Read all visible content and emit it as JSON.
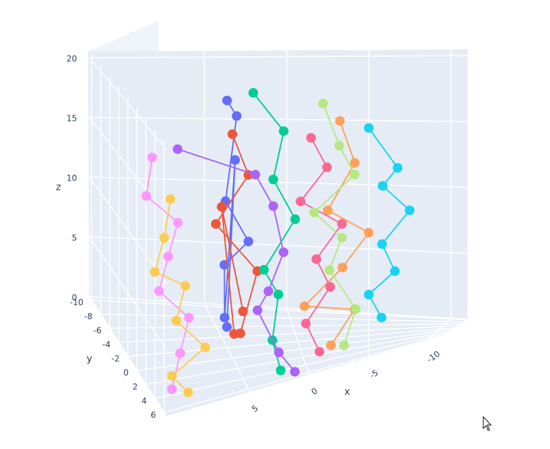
{
  "chart_data": {
    "type": "scatter3d",
    "x_label": "x",
    "y_label": "y",
    "z_label": "z",
    "xlim": [
      -11,
      12
    ],
    "ylim": [
      -10.5,
      6.5
    ],
    "zlim": [
      0,
      20.5
    ],
    "xticks": [
      -10,
      -5,
      0,
      5
    ],
    "yticks": [
      -10,
      -8,
      -6,
      -4,
      -2,
      0,
      2,
      4,
      6
    ],
    "zticks": [
      0,
      5,
      10,
      15,
      20
    ],
    "grid": true,
    "series": [
      {
        "color": "#636efa",
        "x": [
          5,
          4.5,
          5.5,
          4,
          5,
          6,
          4.8,
          5.2
        ],
        "y": [
          -2,
          -1,
          0,
          1,
          -3,
          2,
          0,
          -1
        ],
        "z": [
          19,
          18,
          12,
          9,
          6,
          4,
          15,
          2
        ]
      },
      {
        "color": "#EF553B",
        "x": [
          5,
          4,
          6,
          3.5,
          5,
          4.5,
          6,
          5
        ],
        "y": [
          0,
          1,
          -1,
          2,
          3,
          -2,
          1,
          4
        ],
        "z": [
          17,
          14,
          10,
          7,
          3,
          1,
          12,
          5
        ]
      },
      {
        "color": "#00cc96",
        "x": [
          3,
          1,
          2,
          0.5,
          3,
          1.5,
          2.5,
          2
        ],
        "y": [
          -3,
          -2,
          0,
          1,
          2,
          -1,
          3,
          4
        ],
        "z": [
          19,
          16,
          13,
          10,
          7,
          4,
          2,
          0
        ]
      },
      {
        "color": "#ab63fa",
        "x": [
          8,
          3,
          2,
          1.5,
          2.5,
          3,
          2,
          1
        ],
        "y": [
          -4,
          -2,
          0,
          2,
          1,
          -1,
          3,
          5
        ],
        "z": [
          15,
          13,
          11,
          8,
          5,
          3,
          1,
          0
        ]
      },
      {
        "color": "#FFA15A",
        "x": [
          -3,
          -4,
          -2,
          -5,
          -3,
          0,
          -4,
          -2
        ],
        "y": [
          -3,
          -1,
          0,
          1,
          2,
          3,
          -2,
          4
        ],
        "z": [
          16,
          13,
          10,
          8,
          6,
          4,
          2,
          1
        ]
      },
      {
        "color": "#19d3f3",
        "x": [
          -5,
          -7,
          -6,
          -8,
          -6,
          -7,
          -5,
          -6
        ],
        "y": [
          -5,
          -3,
          -1,
          0,
          1,
          2,
          -2,
          3
        ],
        "z": [
          15,
          12,
          11,
          9,
          7,
          5,
          3,
          2
        ]
      },
      {
        "color": "#FF6692",
        "x": [
          -1,
          -2,
          0,
          -3,
          -1,
          -2,
          0,
          -1
        ],
        "y": [
          -3,
          -1,
          0,
          1,
          2,
          3,
          4,
          5
        ],
        "z": [
          15,
          13,
          11,
          9,
          7,
          5,
          3,
          1
        ]
      },
      {
        "color": "#B6E880",
        "x": [
          -2,
          -3,
          -4,
          -1,
          -3,
          -2,
          -4,
          -3
        ],
        "y": [
          -6,
          -4,
          -2,
          0,
          1,
          2,
          3,
          5
        ],
        "z": [
          17,
          14,
          12,
          10,
          8,
          6,
          3,
          1
        ]
      },
      {
        "color": "#FF97FF",
        "x": [
          10,
          11,
          9,
          10,
          11,
          9,
          10,
          11
        ],
        "y": [
          -3,
          -1,
          0,
          1,
          2,
          3,
          4,
          5
        ],
        "z": [
          15,
          13,
          11,
          9,
          7,
          5,
          3,
          1
        ]
      },
      {
        "color": "#FECB52",
        "x": [
          9,
          10,
          11,
          9,
          10,
          8,
          11,
          10
        ],
        "y": [
          -2,
          0,
          1,
          2,
          3,
          4,
          5,
          6
        ],
        "z": [
          12,
          10,
          8,
          7,
          5,
          3,
          2,
          1
        ]
      }
    ]
  }
}
